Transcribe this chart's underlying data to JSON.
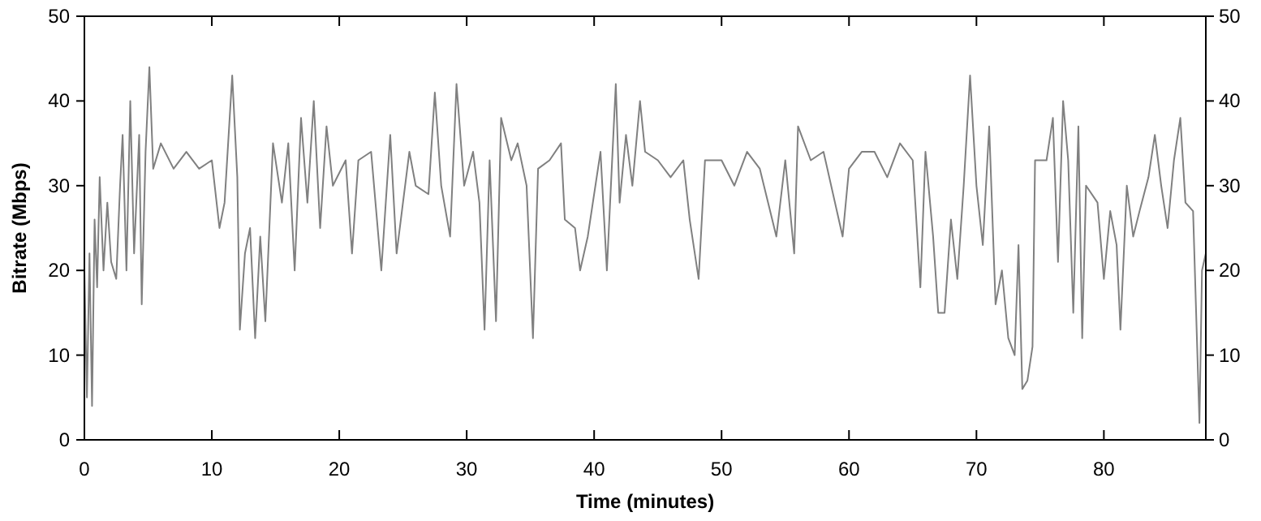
{
  "chart_data": {
    "type": "line",
    "xlabel": "Time (minutes)",
    "ylabel": "Bitrate (Mbps)",
    "xlim": [
      0,
      88
    ],
    "xticks": [
      0,
      10,
      20,
      30,
      40,
      50,
      60,
      70,
      80
    ],
    "ylim": [
      0,
      50
    ],
    "yticks": [
      0,
      10,
      20,
      30,
      40,
      50
    ],
    "y2lim": [
      0,
      50
    ],
    "y2ticks": [
      0,
      10,
      20,
      30,
      40,
      50
    ],
    "grid": false,
    "line_style": "solid",
    "series": [
      {
        "color": "#808080",
        "x": [
          0,
          0.2,
          0.4,
          0.6,
          0.8,
          1,
          1.2,
          1.5,
          1.8,
          2.1,
          2.5,
          2.8,
          3,
          3.3,
          3.6,
          3.9,
          4.3,
          4.5,
          4.8,
          5.1,
          5.4,
          6,
          7,
          8,
          9,
          10,
          10.6,
          11,
          11.6,
          12,
          12.2,
          12.6,
          13,
          13.4,
          13.8,
          14.2,
          14.8,
          15.5,
          16,
          16.5,
          17,
          17.5,
          18,
          18.5,
          19,
          19.5,
          20.5,
          21,
          21.5,
          22.5,
          23.3,
          24,
          24.5,
          25.5,
          26,
          27,
          27.5,
          28,
          28.7,
          29.2,
          29.8,
          30.5,
          31,
          31.4,
          31.8,
          32.3,
          32.7,
          33.5,
          34,
          34.7,
          35.2,
          35.6,
          36.5,
          37.4,
          37.7,
          38.5,
          38.9,
          39.5,
          40.5,
          41,
          41.7,
          42,
          42.5,
          43,
          43.6,
          44,
          45,
          46,
          47,
          47.5,
          48.2,
          48.7,
          50,
          51,
          52,
          53,
          54.3,
          55,
          55.7,
          56,
          57,
          58,
          59.5,
          60,
          61,
          62,
          63,
          64,
          65,
          65.6,
          66,
          66.6,
          67,
          67.5,
          68,
          68.5,
          69,
          69.5,
          70,
          70.5,
          71,
          71.5,
          72,
          72.5,
          73,
          73.3,
          73.6,
          74,
          74.4,
          74.6,
          75.5,
          76,
          76.4,
          76.8,
          77.2,
          77.6,
          78,
          78.3,
          78.6,
          79.5,
          80,
          80.5,
          81,
          81.3,
          81.8,
          82.3,
          82.8,
          83.5,
          84,
          84.5,
          85,
          85.5,
          86,
          86.4,
          87,
          87.5,
          87.7,
          88
        ],
        "values": [
          20,
          5,
          22,
          4,
          26,
          18,
          31,
          20,
          28,
          21,
          19,
          30,
          36,
          20,
          40,
          22,
          36,
          16,
          34,
          44,
          32,
          35,
          32,
          34,
          32,
          33,
          25,
          28,
          43,
          31,
          13,
          22,
          25,
          12,
          24,
          14,
          35,
          28,
          35,
          20,
          38,
          28,
          40,
          25,
          37,
          30,
          33,
          22,
          33,
          34,
          20,
          36,
          22,
          34,
          30,
          29,
          41,
          30,
          24,
          42,
          30,
          34,
          28,
          13,
          33,
          14,
          38,
          33,
          35,
          30,
          12,
          32,
          33,
          35,
          26,
          25,
          20,
          24,
          34,
          20,
          42,
          28,
          36,
          30,
          40,
          34,
          33,
          31,
          33,
          26,
          19,
          33,
          33,
          30,
          34,
          32,
          24,
          33,
          22,
          37,
          33,
          34,
          24,
          32,
          34,
          34,
          31,
          35,
          33,
          18,
          34,
          24,
          15,
          15,
          26,
          19,
          30,
          43,
          30,
          23,
          37,
          16,
          20,
          12,
          10,
          23,
          6,
          7,
          11,
          33,
          33,
          38,
          21,
          40,
          33,
          15,
          37,
          12,
          30,
          28,
          19,
          27,
          23,
          13,
          30,
          24,
          27,
          31,
          36,
          30,
          25,
          33,
          38,
          28,
          27,
          2,
          20,
          22
        ]
      }
    ]
  }
}
